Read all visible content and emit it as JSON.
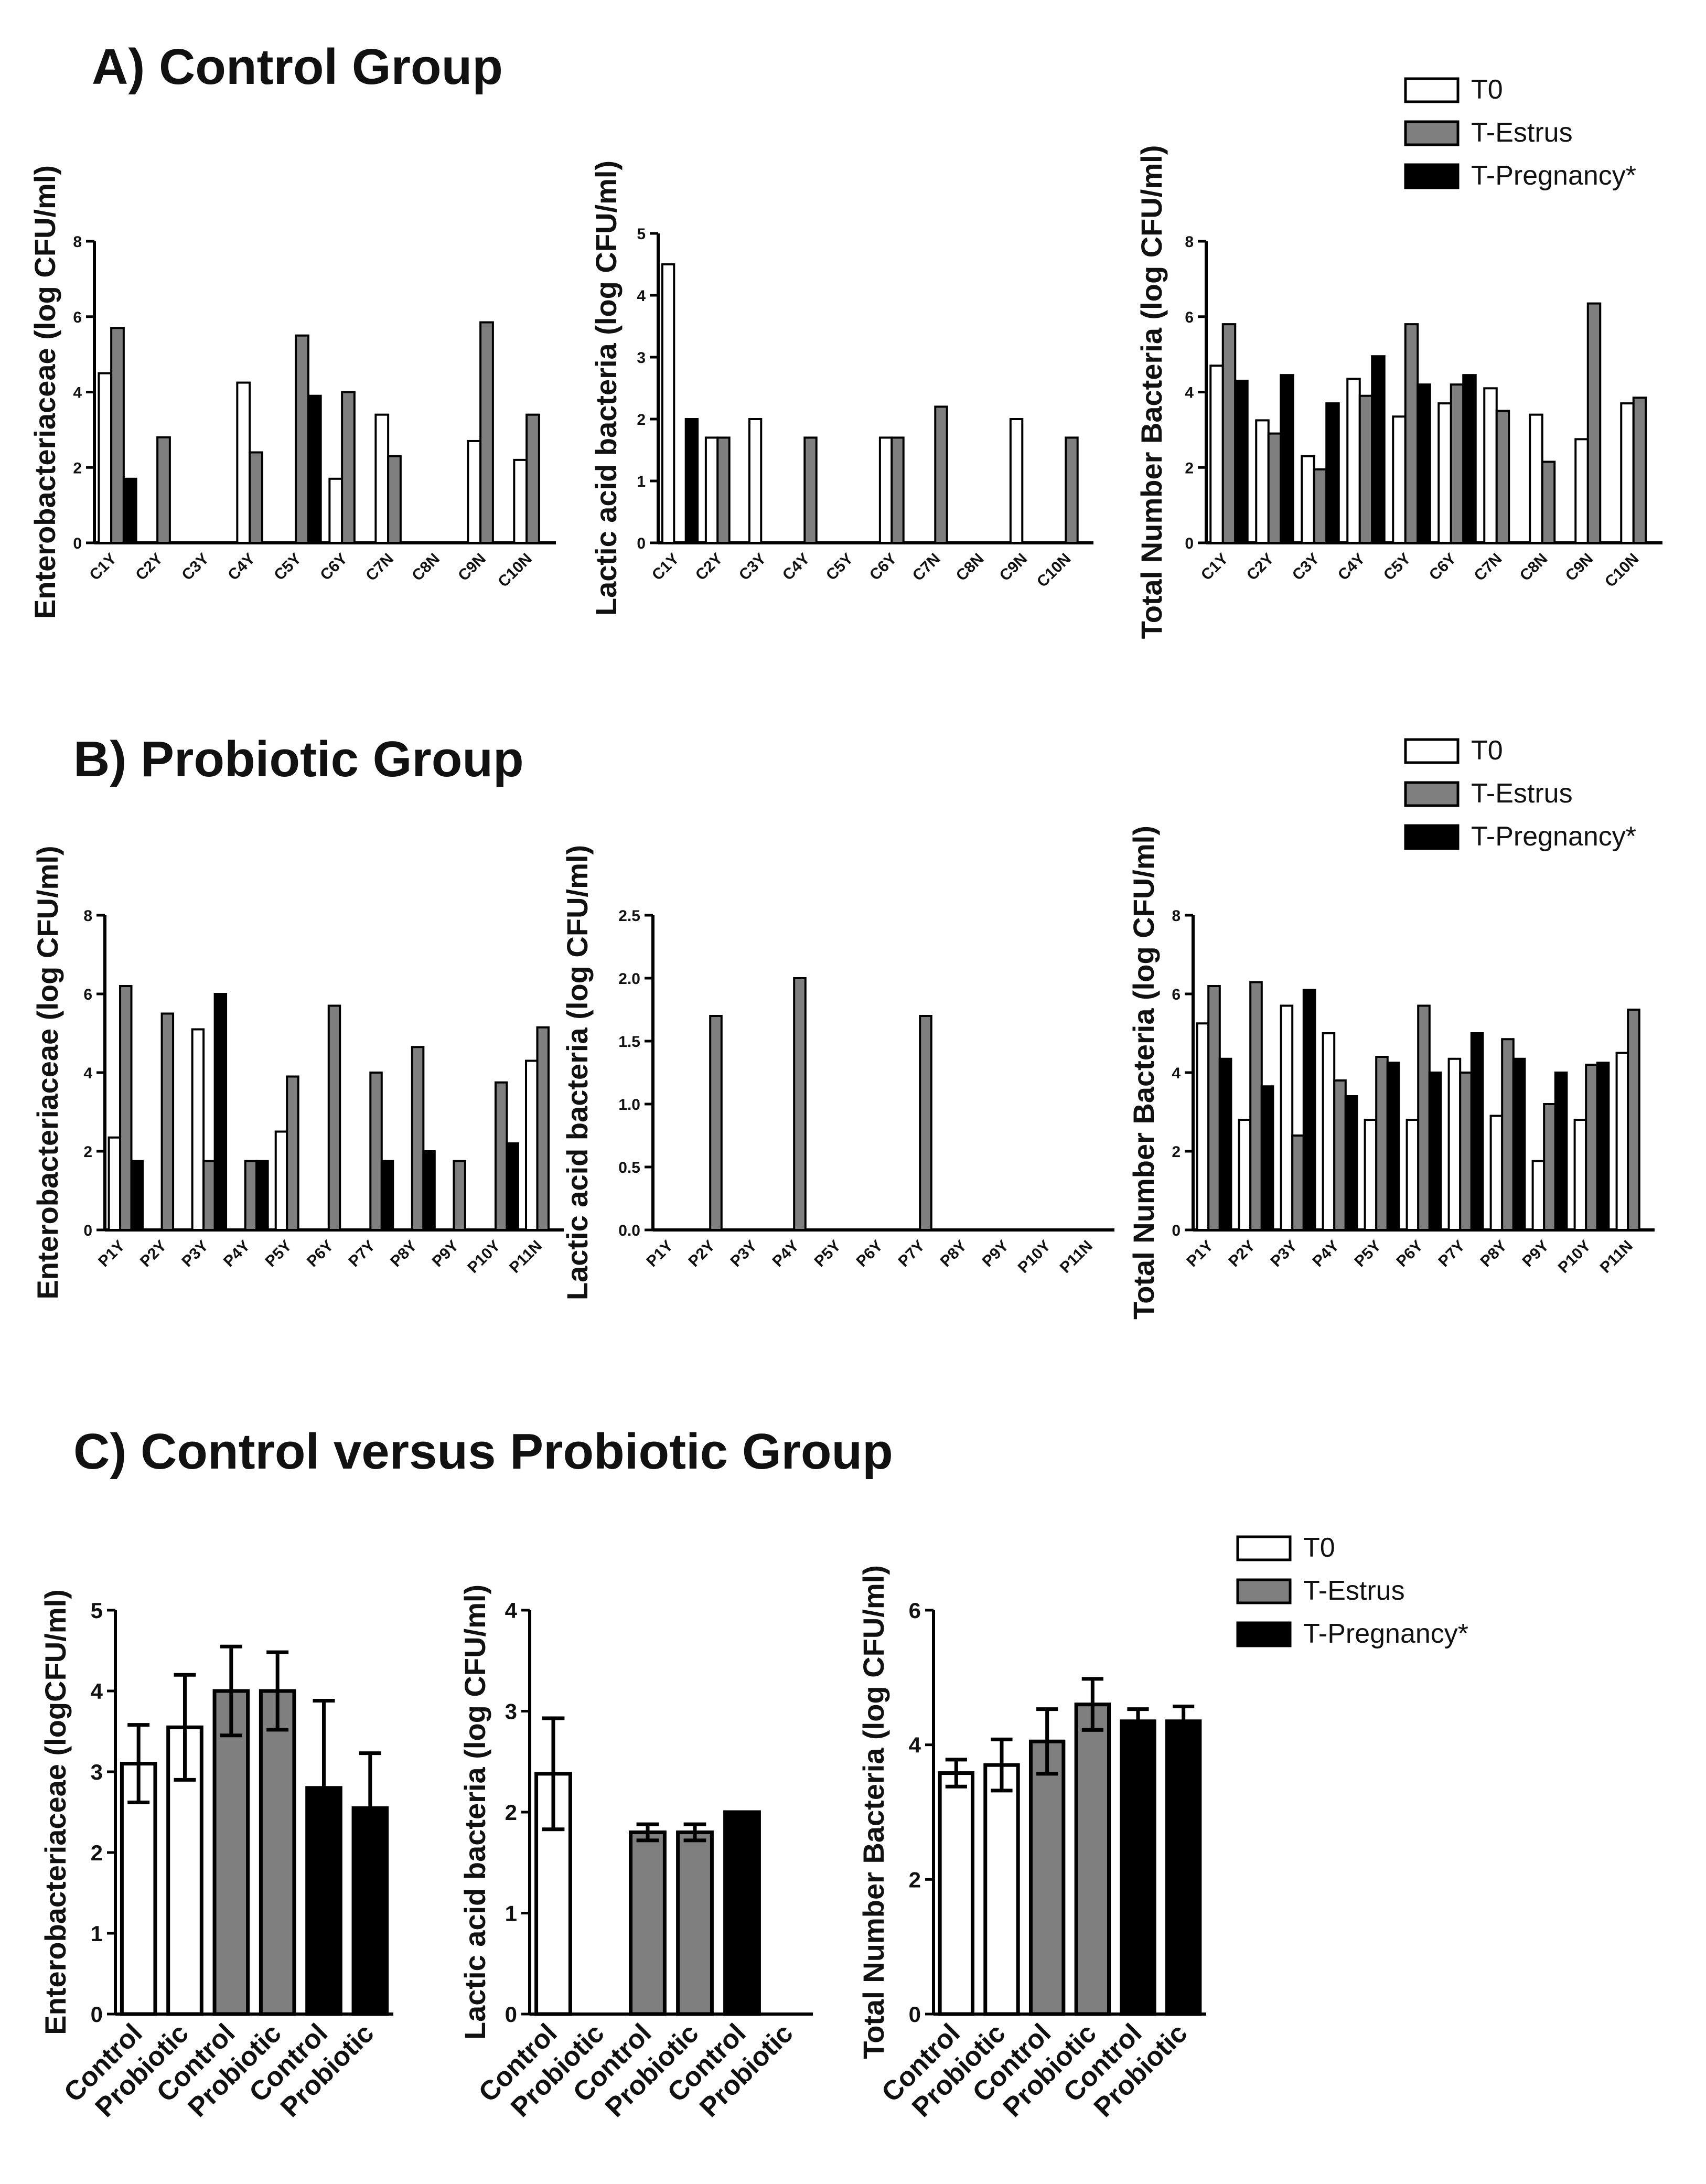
{
  "colors": {
    "T0": "#ffffff",
    "T-Estrus": "#7f7f7f",
    "T-Pregnancy*": "#000000",
    "outline": "#000000"
  },
  "titles": {
    "A": "A) Control Group",
    "B": "B) Probiotic Group",
    "C": "C) Control versus Probiotic Group"
  },
  "legend": {
    "items": [
      "T0",
      "T-Estrus",
      "T-Pregnancy*"
    ]
  },
  "chart_data": [
    {
      "id": "A1",
      "section": "A",
      "type": "bar",
      "ylabel": "Enterobacteriaceae (log CFU/ml)",
      "ylim": [
        0,
        8
      ],
      "yticks": [
        "0",
        "2",
        "4",
        "6",
        "8"
      ],
      "categories": [
        "C1Y",
        "C2Y",
        "C3Y",
        "C4Y",
        "C5Y",
        "C6Y",
        "C7N",
        "C8N",
        "C9N",
        "C10N"
      ],
      "series": [
        {
          "name": "T0",
          "values": [
            4.5,
            null,
            null,
            4.25,
            null,
            1.7,
            3.4,
            null,
            2.7,
            2.2
          ]
        },
        {
          "name": "T-Estrus",
          "values": [
            5.7,
            2.8,
            null,
            2.4,
            5.5,
            4.0,
            2.3,
            null,
            5.85,
            3.4
          ]
        },
        {
          "name": "T-Pregnancy*",
          "values": [
            1.7,
            null,
            null,
            null,
            3.9,
            null,
            null,
            null,
            null,
            null
          ]
        }
      ]
    },
    {
      "id": "A2",
      "section": "A",
      "type": "bar",
      "ylabel": "Lactic acid bacteria (log CFU/ml)",
      "ylim": [
        0,
        5
      ],
      "yticks": [
        "0",
        "1",
        "2",
        "3",
        "4",
        "5"
      ],
      "categories": [
        "C1Y",
        "C2Y",
        "C3Y",
        "C4Y",
        "C5Y",
        "C6Y",
        "C7N",
        "C8N",
        "C9N",
        "C10N"
      ],
      "series": [
        {
          "name": "T0",
          "values": [
            4.5,
            1.7,
            2.0,
            null,
            null,
            1.7,
            null,
            null,
            2.0,
            null
          ]
        },
        {
          "name": "T-Estrus",
          "values": [
            null,
            1.7,
            null,
            1.7,
            null,
            1.7,
            2.2,
            null,
            null,
            1.7
          ]
        },
        {
          "name": "T-Pregnancy*",
          "values": [
            2.0,
            null,
            null,
            null,
            null,
            null,
            null,
            null,
            null,
            null
          ]
        }
      ]
    },
    {
      "id": "A3",
      "section": "A",
      "type": "bar",
      "ylabel": "Total Number Bacteria (log CFU/ml)",
      "ylim": [
        0,
        8
      ],
      "yticks": [
        "0",
        "2",
        "4",
        "6",
        "8"
      ],
      "categories": [
        "C1Y",
        "C2Y",
        "C3Y",
        "C4Y",
        "C5Y",
        "C6Y",
        "C7N",
        "C8N",
        "C9N",
        "C10N"
      ],
      "series": [
        {
          "name": "T0",
          "values": [
            4.7,
            3.25,
            2.3,
            4.35,
            3.35,
            3.7,
            4.1,
            3.4,
            2.75,
            3.7
          ]
        },
        {
          "name": "T-Estrus",
          "values": [
            5.8,
            2.9,
            1.95,
            3.9,
            5.8,
            4.2,
            3.5,
            2.15,
            6.35,
            3.85
          ]
        },
        {
          "name": "T-Pregnancy*",
          "values": [
            4.3,
            4.45,
            3.7,
            4.95,
            4.2,
            4.45,
            null,
            null,
            null,
            null
          ]
        }
      ]
    },
    {
      "id": "B1",
      "section": "B",
      "type": "bar",
      "ylabel": "Enterobacteriaceae (log CFU/ml)",
      "ylim": [
        0,
        8
      ],
      "yticks": [
        "0",
        "2",
        "4",
        "6",
        "8"
      ],
      "categories": [
        "P1Y",
        "P2Y",
        "P3Y",
        "P4Y",
        "P5Y",
        "P6Y",
        "P7Y",
        "P8Y",
        "P9Y",
        "P10Y",
        "P11N"
      ],
      "series": [
        {
          "name": "T0",
          "values": [
            2.35,
            null,
            5.1,
            null,
            2.5,
            null,
            null,
            null,
            null,
            null,
            4.3
          ]
        },
        {
          "name": "T-Estrus",
          "values": [
            6.2,
            5.5,
            1.75,
            1.75,
            3.9,
            5.7,
            4.0,
            4.65,
            1.75,
            3.75,
            5.15
          ]
        },
        {
          "name": "T-Pregnancy*",
          "values": [
            1.75,
            null,
            6.0,
            1.75,
            null,
            null,
            1.75,
            2.0,
            null,
            2.2,
            null
          ]
        }
      ]
    },
    {
      "id": "B2",
      "section": "B",
      "type": "bar",
      "ylabel": "Lactic acid bacteria (log CFU/ml)",
      "ylim": [
        0,
        2.5
      ],
      "yticks": [
        "0.0",
        "0.5",
        "1.0",
        "1.5",
        "2.0",
        "2.5"
      ],
      "categories": [
        "P1Y",
        "P2Y",
        "P3Y",
        "P4Y",
        "P5Y",
        "P6Y",
        "P7Y",
        "P8Y",
        "P9Y",
        "P10Y",
        "P11N"
      ],
      "series": [
        {
          "name": "T0",
          "values": [
            null,
            null,
            null,
            null,
            null,
            null,
            null,
            null,
            null,
            null,
            null
          ]
        },
        {
          "name": "T-Estrus",
          "values": [
            null,
            1.7,
            null,
            2.0,
            null,
            null,
            1.7,
            null,
            null,
            null,
            null
          ]
        },
        {
          "name": "T-Pregnancy*",
          "values": [
            null,
            null,
            null,
            null,
            null,
            null,
            null,
            null,
            null,
            null,
            null
          ]
        }
      ]
    },
    {
      "id": "B3",
      "section": "B",
      "type": "bar",
      "ylabel": "Total Number Bacteria (log CFU/ml)",
      "ylim": [
        0,
        8
      ],
      "yticks": [
        "0",
        "2",
        "4",
        "6",
        "8"
      ],
      "categories": [
        "P1Y",
        "P2Y",
        "P3Y",
        "P4Y",
        "P5Y",
        "P6Y",
        "P7Y",
        "P8Y",
        "P9Y",
        "P10Y",
        "P11N"
      ],
      "series": [
        {
          "name": "T0",
          "values": [
            5.25,
            2.8,
            5.7,
            5.0,
            2.8,
            2.8,
            4.35,
            2.9,
            1.75,
            2.8,
            4.5
          ]
        },
        {
          "name": "T-Estrus",
          "values": [
            6.2,
            6.3,
            2.4,
            3.8,
            4.4,
            5.7,
            4.0,
            4.85,
            3.2,
            4.2,
            5.6
          ]
        },
        {
          "name": "T-Pregnancy*",
          "values": [
            4.35,
            3.65,
            6.1,
            3.4,
            4.25,
            4.0,
            5.0,
            4.35,
            4.0,
            4.25,
            null
          ]
        }
      ]
    },
    {
      "id": "C1",
      "section": "C",
      "type": "bar",
      "ylabel": "Enterobacteriaceae  (logCFU/ml)",
      "ylim": [
        0,
        5
      ],
      "yticks": [
        "0",
        "1",
        "2",
        "3",
        "4",
        "5"
      ],
      "categories": [
        "Control",
        "Probiotic",
        "Control",
        "Probiotic",
        "Control",
        "Probiotic"
      ],
      "groups": [
        "T0",
        "T0",
        "T-Estrus",
        "T-Estrus",
        "T-Pregnancy*",
        "T-Pregnancy*"
      ],
      "values": [
        3.1,
        3.55,
        4.0,
        4.0,
        2.8,
        2.55
      ],
      "errors": [
        0.48,
        0.65,
        0.55,
        0.48,
        1.08,
        0.68
      ]
    },
    {
      "id": "C2",
      "section": "C",
      "type": "bar",
      "ylabel": "Lactic acid bacteria (log CFU/ml)",
      "ylim": [
        0,
        4
      ],
      "yticks": [
        "0",
        "1",
        "2",
        "3",
        "4"
      ],
      "categories": [
        "Control",
        "Probiotic",
        "Control",
        "Probiotic",
        "Control",
        "Probiotic"
      ],
      "groups": [
        "T0",
        "T0",
        "T-Estrus",
        "T-Estrus",
        "T-Pregnancy*",
        "T-Pregnancy*"
      ],
      "values": [
        2.38,
        null,
        1.8,
        1.8,
        2.0,
        null
      ],
      "errors": [
        0.55,
        null,
        0.08,
        0.08,
        null,
        null
      ]
    },
    {
      "id": "C3",
      "section": "C",
      "type": "bar",
      "ylabel": "Total Number Bacteria (log CFU/ml)",
      "ylim": [
        0,
        6
      ],
      "yticks": [
        "0",
        "2",
        "4",
        "6"
      ],
      "categories": [
        "Control",
        "Probiotic",
        "Control",
        "Probiotic",
        "Control",
        "Probiotic"
      ],
      "groups": [
        "T0",
        "T0",
        "T-Estrus",
        "T-Estrus",
        "T-Pregnancy*",
        "T-Pregnancy*"
      ],
      "values": [
        3.58,
        3.7,
        4.05,
        4.6,
        4.35,
        4.35
      ],
      "errors": [
        0.2,
        0.38,
        0.48,
        0.38,
        0.18,
        0.22
      ]
    }
  ]
}
